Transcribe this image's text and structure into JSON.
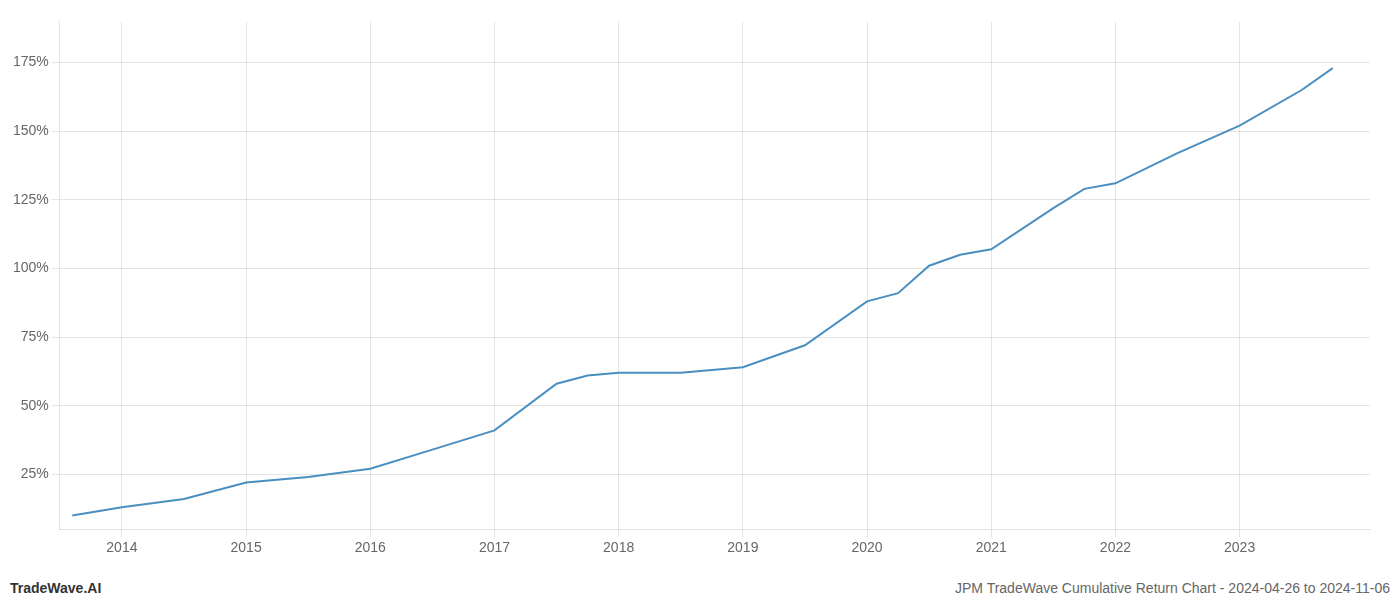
{
  "chart_data": {
    "type": "line",
    "annotations": [
      "TradeWave.AI",
      "JPM TradeWave Cumulative Return Chart - 2024-04-26 to 2024-11-06"
    ],
    "x": [
      2013.6,
      2014.0,
      2014.5,
      2015.0,
      2015.5,
      2016.0,
      2016.5,
      2017.0,
      2017.5,
      2017.75,
      2018.0,
      2018.5,
      2018.75,
      2019.0,
      2019.5,
      2020.0,
      2020.25,
      2020.5,
      2020.75,
      2021.0,
      2021.5,
      2021.75,
      2022.0,
      2022.5,
      2023.0,
      2023.5,
      2023.75
    ],
    "values": [
      10,
      13,
      16,
      22,
      24,
      27,
      34,
      41,
      58,
      61,
      62,
      62,
      63,
      64,
      72,
      88,
      91,
      101,
      105,
      107,
      122,
      129,
      131,
      142,
      152,
      165,
      173
    ],
    "color": "#4a8fc0",
    "xlim": [
      2013.5,
      2024.05
    ],
    "xticks": [
      2014,
      2015,
      2016,
      2017,
      2018,
      2019,
      2020,
      2021,
      2022,
      2023
    ],
    "ylim": [
      5,
      190
    ],
    "yticks": [
      {
        "value": 25,
        "label": "25%"
      },
      {
        "value": 50,
        "label": "50%"
      },
      {
        "value": 75,
        "label": "75%"
      },
      {
        "value": 100,
        "label": "100%"
      },
      {
        "value": 125,
        "label": "125%"
      },
      {
        "value": 150,
        "label": "150%"
      },
      {
        "value": 175,
        "label": "175%"
      }
    ],
    "grid": true
  }
}
